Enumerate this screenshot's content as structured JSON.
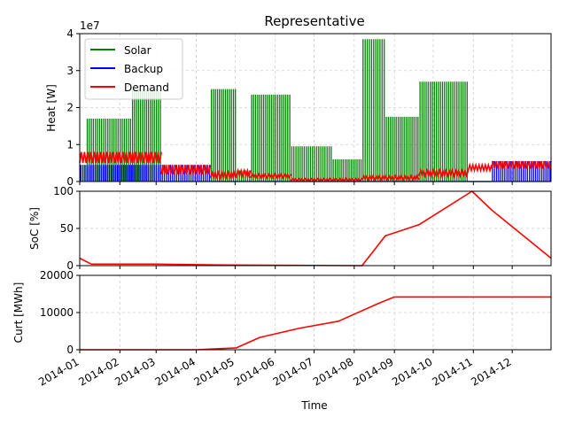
{
  "chart_data": {
    "type": "line",
    "title": "Representative",
    "xlabel": "Time",
    "x_tick_labels": [
      "2014-01",
      "2014-02",
      "2014-03",
      "2014-04",
      "2014-05",
      "2014-06",
      "2014-07",
      "2014-08",
      "2014-09",
      "2014-10",
      "2014-11",
      "2014-12"
    ],
    "x_range": [
      "2014-01-01",
      "2014-12-31"
    ],
    "grid": true,
    "panels": [
      {
        "id": "heat",
        "ylabel": "Heat [W]",
        "y_offset_label": "1e7",
        "ylim": [
          0,
          4
        ],
        "y_ticks": [
          "0",
          "1",
          "2",
          "3",
          "4"
        ],
        "legend": {
          "placement": "upper-left",
          "entries": [
            "Solar",
            "Backup",
            "Demand"
          ]
        },
        "series": [
          {
            "name": "Solar",
            "color": "#008000",
            "segments": [
              {
                "start": "2014-01-01",
                "end": "2014-01-06",
                "peak": 0.45
              },
              {
                "start": "2014-01-06",
                "end": "2014-02-10",
                "peak": 1.7
              },
              {
                "start": "2014-02-10",
                "end": "2014-03-05",
                "peak": 2.5
              },
              {
                "start": "2014-03-05",
                "end": "2014-04-12",
                "peak": 0.0
              },
              {
                "start": "2014-04-12",
                "end": "2014-05-02",
                "peak": 2.5
              },
              {
                "start": "2014-05-02",
                "end": "2014-05-13",
                "peak": 0.3
              },
              {
                "start": "2014-05-13",
                "end": "2014-06-13",
                "peak": 2.35
              },
              {
                "start": "2014-06-13",
                "end": "2014-07-15",
                "peak": 0.95
              },
              {
                "start": "2014-07-15",
                "end": "2014-08-07",
                "peak": 0.6
              },
              {
                "start": "2014-08-07",
                "end": "2014-08-25",
                "peak": 3.85
              },
              {
                "start": "2014-08-25",
                "end": "2014-09-20",
                "peak": 1.75
              },
              {
                "start": "2014-09-20",
                "end": "2014-10-28",
                "peak": 2.7
              },
              {
                "start": "2014-10-28",
                "end": "2014-12-31",
                "peak": 0.0
              }
            ]
          },
          {
            "name": "Backup",
            "color": "#0000ff",
            "segments": [
              {
                "start": "2014-01-01",
                "end": "2014-03-05",
                "peak": 0.45
              },
              {
                "start": "2014-03-05",
                "end": "2014-04-12",
                "peak": 0.45
              },
              {
                "start": "2014-04-12",
                "end": "2014-11-15",
                "peak": 0.0
              },
              {
                "start": "2014-11-15",
                "end": "2014-12-31",
                "peak": 0.55
              }
            ]
          },
          {
            "name": "Demand",
            "color": "#ff0000",
            "segments": [
              {
                "start": "2014-01-01",
                "end": "2014-03-05",
                "low": 0.5,
                "high": 0.8
              },
              {
                "start": "2014-03-05",
                "end": "2014-04-12",
                "low": 0.2,
                "high": 0.45
              },
              {
                "start": "2014-04-12",
                "end": "2014-05-02",
                "low": 0.1,
                "high": 0.25
              },
              {
                "start": "2014-05-02",
                "end": "2014-05-13",
                "low": 0.15,
                "high": 0.3
              },
              {
                "start": "2014-05-13",
                "end": "2014-06-13",
                "low": 0.1,
                "high": 0.2
              },
              {
                "start": "2014-06-13",
                "end": "2014-08-07",
                "low": 0.02,
                "high": 0.08
              },
              {
                "start": "2014-08-07",
                "end": "2014-09-20",
                "low": 0.05,
                "high": 0.15
              },
              {
                "start": "2014-09-20",
                "end": "2014-10-28",
                "low": 0.15,
                "high": 0.3
              },
              {
                "start": "2014-10-28",
                "end": "2014-11-15",
                "low": 0.3,
                "high": 0.45
              },
              {
                "start": "2014-11-15",
                "end": "2014-12-31",
                "low": 0.35,
                "high": 0.55
              }
            ]
          }
        ]
      },
      {
        "id": "soc",
        "ylabel": "SoC [%]",
        "ylim": [
          0,
          100
        ],
        "y_ticks": [
          "0",
          "50",
          "100"
        ],
        "series": [
          {
            "name": "SoC",
            "color": "#ff0000",
            "points": [
              [
                "2014-01-01",
                10
              ],
              [
                "2014-01-10",
                2
              ],
              [
                "2014-03-01",
                2
              ],
              [
                "2014-04-15",
                1
              ],
              [
                "2014-08-07",
                0
              ],
              [
                "2014-08-16",
                20
              ],
              [
                "2014-08-25",
                40
              ],
              [
                "2014-09-20",
                55
              ],
              [
                "2014-10-31",
                100
              ],
              [
                "2014-11-15",
                75
              ],
              [
                "2014-12-31",
                10
              ]
            ]
          }
        ]
      },
      {
        "id": "curt",
        "ylabel": "Curt [MWh]",
        "ylim": [
          0,
          20000
        ],
        "y_ticks": [
          "0",
          "10000",
          "20000"
        ],
        "series": [
          {
            "name": "Curt",
            "color": "#ff0000",
            "points": [
              [
                "2014-01-01",
                0
              ],
              [
                "2014-04-01",
                0
              ],
              [
                "2014-05-02",
                500
              ],
              [
                "2014-05-20",
                3300
              ],
              [
                "2014-06-20",
                5800
              ],
              [
                "2014-07-20",
                7700
              ],
              [
                "2014-08-20",
                12500
              ],
              [
                "2014-09-01",
                14200
              ],
              [
                "2014-12-31",
                14200
              ]
            ]
          }
        ]
      }
    ]
  }
}
